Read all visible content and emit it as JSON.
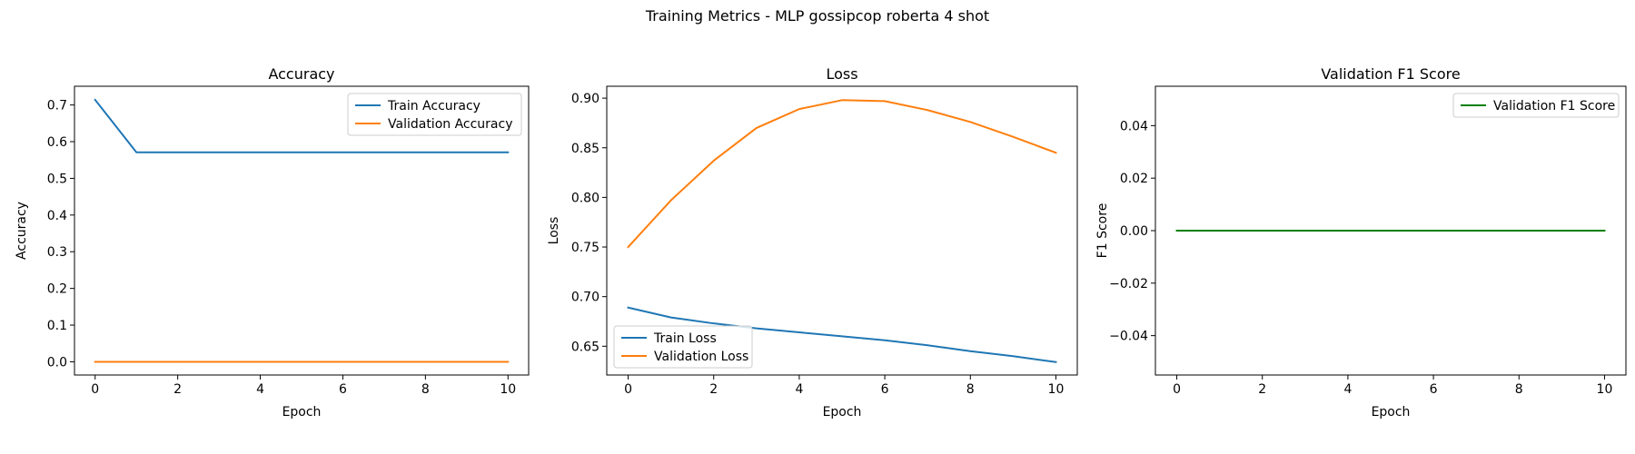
{
  "figure_title": "Training Metrics - MLP gossipcop roberta 4 shot",
  "chart_data": [
    {
      "type": "line",
      "title": "Accuracy",
      "xlabel": "Epoch",
      "ylabel": "Accuracy",
      "xlim": [
        -0.5,
        10.5
      ],
      "ylim": [
        -0.036,
        0.751
      ],
      "xticks": [
        0,
        2,
        4,
        6,
        8,
        10
      ],
      "yticks": [
        0.0,
        0.1,
        0.2,
        0.3,
        0.4,
        0.5,
        0.6,
        0.7
      ],
      "ytick_labels": [
        "0.0",
        "0.1",
        "0.2",
        "0.3",
        "0.4",
        "0.5",
        "0.6",
        "0.7"
      ],
      "legend": "upper right",
      "grid": false,
      "x": [
        0,
        1,
        2,
        3,
        4,
        5,
        6,
        7,
        8,
        9,
        10
      ],
      "series": [
        {
          "name": "Train Accuracy",
          "color": "#1f77b4",
          "values": [
            0.714,
            0.571,
            0.571,
            0.571,
            0.571,
            0.571,
            0.571,
            0.571,
            0.571,
            0.571,
            0.571
          ]
        },
        {
          "name": "Validation Accuracy",
          "color": "#ff7f0e",
          "values": [
            0,
            0,
            0,
            0,
            0,
            0,
            0,
            0,
            0,
            0,
            0
          ]
        }
      ]
    },
    {
      "type": "line",
      "title": "Loss",
      "xlabel": "Epoch",
      "ylabel": "Loss",
      "xlim": [
        -0.5,
        10.5
      ],
      "ylim": [
        0.621,
        0.912
      ],
      "xticks": [
        0,
        2,
        4,
        6,
        8,
        10
      ],
      "yticks": [
        0.65,
        0.7,
        0.75,
        0.8,
        0.85,
        0.9
      ],
      "ytick_labels": [
        "0.65",
        "0.70",
        "0.75",
        "0.80",
        "0.85",
        "0.90"
      ],
      "legend": "lower left",
      "grid": false,
      "x": [
        0,
        1,
        2,
        3,
        4,
        5,
        6,
        7,
        8,
        9,
        10
      ],
      "series": [
        {
          "name": "Train Loss",
          "color": "#1f77b4",
          "values": [
            0.689,
            0.679,
            0.673,
            0.668,
            0.664,
            0.66,
            0.656,
            0.651,
            0.645,
            0.64,
            0.634
          ]
        },
        {
          "name": "Validation Loss",
          "color": "#ff7f0e",
          "values": [
            0.75,
            0.797,
            0.837,
            0.87,
            0.889,
            0.898,
            0.897,
            0.888,
            0.876,
            0.861,
            0.845
          ]
        }
      ]
    },
    {
      "type": "line",
      "title": "Validation F1 Score",
      "xlabel": "Epoch",
      "ylabel": "F1 Score",
      "xlim": [
        -0.5,
        10.5
      ],
      "ylim": [
        -0.055,
        0.055
      ],
      "xticks": [
        0,
        2,
        4,
        6,
        8,
        10
      ],
      "yticks": [
        -0.04,
        -0.02,
        0.0,
        0.02,
        0.04
      ],
      "ytick_labels": [
        "−0.04",
        "−0.02",
        "0.00",
        "0.02",
        "0.04"
      ],
      "legend": "upper right",
      "grid": false,
      "x": [
        0,
        1,
        2,
        3,
        4,
        5,
        6,
        7,
        8,
        9,
        10
      ],
      "series": [
        {
          "name": "Validation F1 Score",
          "color": "#008000",
          "values": [
            0,
            0,
            0,
            0,
            0,
            0,
            0,
            0,
            0,
            0,
            0
          ]
        }
      ]
    }
  ]
}
